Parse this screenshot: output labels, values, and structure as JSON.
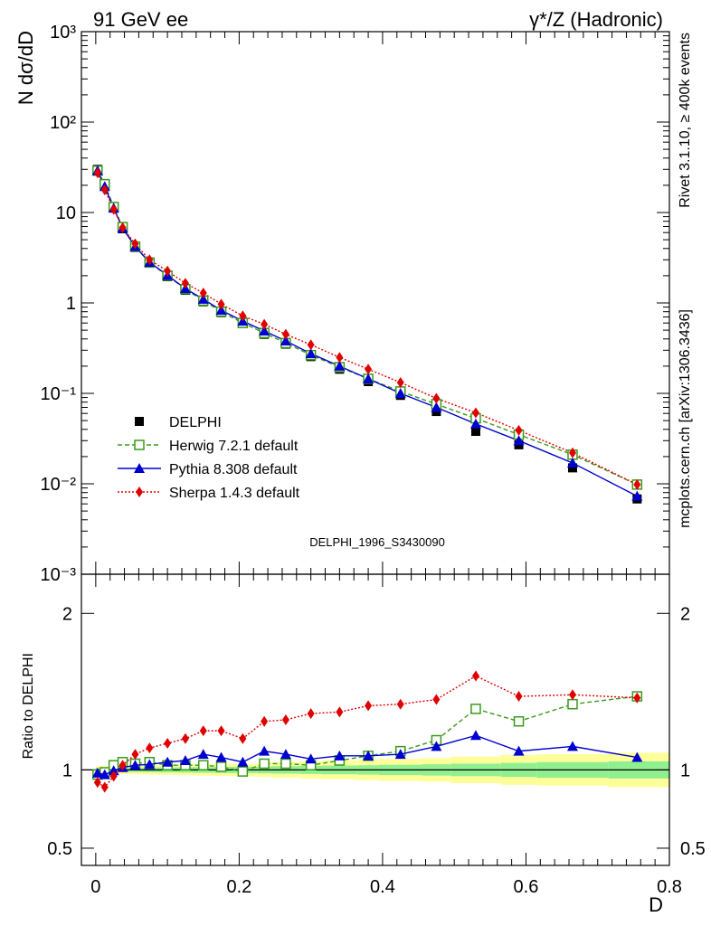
{
  "header": {
    "left": "91 GeV ee",
    "right": "γ*/Z (Hadronic)",
    "side_top": "Rivet 3.1.10, ≥ 400k events",
    "side_bottom": "mcplots.cern.ch [arXiv:1306.3436]",
    "watermark": "DELPHI_1996_S3430090"
  },
  "colors": {
    "data": "#000000",
    "herwig": "#3a9a1a",
    "pythia": "#0000d0",
    "sherpa": "#e00000",
    "band_inner": "#90f090",
    "band_outer": "#ffff99"
  },
  "chart_data": [
    {
      "type": "line",
      "panel": "main",
      "ylabel": "N dσ/dD",
      "yscale": "log",
      "ylim": [
        0.001,
        1000
      ],
      "xlim": [
        -0.02,
        0.8
      ],
      "ytick_labels": [
        "10⁻³",
        "10⁻²",
        "10⁻¹",
        "1",
        "10",
        "10²",
        "10³"
      ],
      "legend_position": "center-left",
      "x": [
        0.0025,
        0.0125,
        0.025,
        0.0375,
        0.055,
        0.075,
        0.1,
        0.125,
        0.15,
        0.175,
        0.205,
        0.235,
        0.265,
        0.3,
        0.34,
        0.38,
        0.425,
        0.475,
        0.53,
        0.59,
        0.665,
        0.755
      ],
      "series": [
        {
          "name": "DELPHI",
          "label": "DELPHI",
          "color_key": "data",
          "marker": "square",
          "values": [
            30,
            20,
            11.2,
            6.6,
            4.1,
            2.75,
            1.95,
            1.38,
            1.03,
            0.78,
            0.6,
            0.45,
            0.35,
            0.255,
            0.185,
            0.135,
            0.095,
            0.063,
            0.038,
            0.027,
            0.015,
            0.0068
          ]
        },
        {
          "name": "Herwig",
          "label": "Herwig 7.2.1 default",
          "color_key": "herwig",
          "marker": "open-square",
          "dash": "5,3",
          "values": [
            29,
            20.6,
            11.5,
            6.9,
            4.2,
            2.8,
            2.0,
            1.42,
            1.06,
            0.8,
            0.6,
            0.465,
            0.36,
            0.265,
            0.195,
            0.145,
            0.105,
            0.076,
            0.053,
            0.035,
            0.021,
            0.0098
          ]
        },
        {
          "name": "Pythia",
          "label": "Pythia 8.308 default",
          "color_key": "pythia",
          "marker": "triangle",
          "values": [
            29,
            19.4,
            11.2,
            6.7,
            4.2,
            2.82,
            2.02,
            1.44,
            1.1,
            0.83,
            0.63,
            0.49,
            0.38,
            0.275,
            0.2,
            0.145,
            0.1,
            0.07,
            0.046,
            0.03,
            0.017,
            0.0073
          ]
        },
        {
          "name": "Sherpa",
          "label": "Sherpa 1.4.3 default",
          "color_key": "sherpa",
          "marker": "diamond",
          "dash": "2,2",
          "values": [
            27.5,
            17.8,
            10.8,
            6.8,
            4.5,
            3.0,
            2.25,
            1.65,
            1.29,
            0.97,
            0.72,
            0.58,
            0.45,
            0.345,
            0.25,
            0.185,
            0.132,
            0.088,
            0.061,
            0.039,
            0.022,
            0.0098
          ]
        }
      ]
    },
    {
      "type": "line",
      "panel": "ratio",
      "ylabel": "Ratio to DELPHI",
      "xlabel": "D",
      "ylim": [
        0.39,
        2.25
      ],
      "ytick_labels": [
        "0.5",
        "1",
        "2"
      ],
      "ytick_values": [
        0.5,
        1,
        2
      ],
      "xtick_labels": [
        "0",
        "0.2",
        "0.4",
        "0.6",
        "0.8"
      ],
      "xtick_values": [
        0,
        0.2,
        0.4,
        0.6,
        0.8
      ],
      "x": [
        0.0025,
        0.0125,
        0.025,
        0.0375,
        0.055,
        0.075,
        0.1,
        0.125,
        0.15,
        0.175,
        0.205,
        0.235,
        0.265,
        0.3,
        0.34,
        0.38,
        0.425,
        0.475,
        0.53,
        0.59,
        0.665,
        0.755
      ],
      "band_bins": [
        [
          0,
          0.005
        ],
        [
          0.005,
          0.02
        ],
        [
          0.02,
          0.03
        ],
        [
          0.03,
          0.045
        ],
        [
          0.045,
          0.065
        ],
        [
          0.065,
          0.085
        ],
        [
          0.085,
          0.115
        ],
        [
          0.115,
          0.135
        ],
        [
          0.135,
          0.165
        ],
        [
          0.165,
          0.185
        ],
        [
          0.185,
          0.225
        ],
        [
          0.225,
          0.245
        ],
        [
          0.245,
          0.285
        ],
        [
          0.285,
          0.315
        ],
        [
          0.315,
          0.365
        ],
        [
          0.365,
          0.395
        ],
        [
          0.395,
          0.455
        ],
        [
          0.455,
          0.495
        ],
        [
          0.495,
          0.565
        ],
        [
          0.565,
          0.615
        ],
        [
          0.615,
          0.715
        ],
        [
          0.715,
          0.8
        ]
      ],
      "band_inner_half": [
        0.012,
        0.012,
        0.013,
        0.013,
        0.014,
        0.015,
        0.016,
        0.017,
        0.018,
        0.019,
        0.02,
        0.022,
        0.024,
        0.026,
        0.028,
        0.03,
        0.033,
        0.036,
        0.04,
        0.045,
        0.05,
        0.055
      ],
      "band_outer_half": [
        0.025,
        0.025,
        0.026,
        0.027,
        0.028,
        0.03,
        0.032,
        0.034,
        0.036,
        0.038,
        0.04,
        0.045,
        0.05,
        0.055,
        0.06,
        0.065,
        0.07,
        0.075,
        0.085,
        0.095,
        0.1,
        0.11
      ],
      "series": [
        {
          "name": "Herwig",
          "color_key": "herwig",
          "marker": "open-square",
          "dash": "5,3",
          "values": [
            0.97,
            0.985,
            1.03,
            1.05,
            1.04,
            1.05,
            1.03,
            1.03,
            1.03,
            1.02,
            0.99,
            1.04,
            1.04,
            1.03,
            1.06,
            1.09,
            1.12,
            1.19,
            1.39,
            1.31,
            1.42,
            1.47
          ]
        },
        {
          "name": "Pythia",
          "color_key": "pythia",
          "marker": "triangle",
          "values": [
            0.98,
            0.97,
            0.995,
            1.015,
            1.03,
            1.035,
            1.05,
            1.06,
            1.1,
            1.08,
            1.05,
            1.12,
            1.1,
            1.07,
            1.09,
            1.09,
            1.1,
            1.15,
            1.22,
            1.12,
            1.15,
            1.08
          ]
        },
        {
          "name": "Sherpa",
          "color_key": "sherpa",
          "marker": "diamond",
          "dash": "2,2",
          "values": [
            0.92,
            0.89,
            0.96,
            1.03,
            1.1,
            1.14,
            1.17,
            1.2,
            1.25,
            1.25,
            1.2,
            1.31,
            1.32,
            1.36,
            1.37,
            1.41,
            1.42,
            1.45,
            1.6,
            1.47,
            1.48,
            1.46
          ]
        }
      ]
    }
  ]
}
